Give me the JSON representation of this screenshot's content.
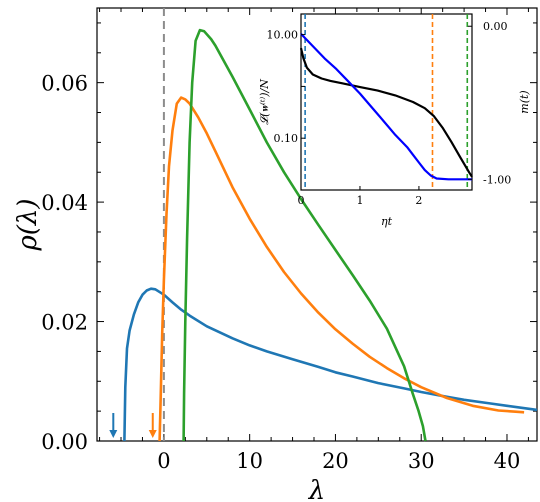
{
  "chart_data": [
    {
      "type": "line",
      "xlabel": "λ",
      "ylabel": "ρ(λ)",
      "xlim": [
        -7.8,
        43.5
      ],
      "ylim": [
        0,
        0.0725
      ],
      "x_ticks": [
        0,
        10,
        20,
        30,
        40
      ],
      "x_tick_labels": [
        "0",
        "10",
        "20",
        "30",
        "40"
      ],
      "y_ticks": [
        0,
        0.02,
        0.04,
        0.06
      ],
      "y_tick_labels": [
        "0.00",
        "0.02",
        "0.04",
        "0.06"
      ],
      "grid": false,
      "legend": "none",
      "vline": {
        "x": 0,
        "color": "#8c8c8c",
        "style": "dashed"
      },
      "series": [
        {
          "color": "#1f77b4",
          "points": [
            [
              -4.6,
              0
            ],
            [
              -4.5,
              0.009
            ],
            [
              -4.3,
              0.0155
            ],
            [
              -4.0,
              0.0185
            ],
            [
              -3.5,
              0.0212
            ],
            [
              -3.0,
              0.0232
            ],
            [
              -2.5,
              0.0245
            ],
            [
              -2.0,
              0.0252
            ],
            [
              -1.5,
              0.0255
            ],
            [
              -1.0,
              0.0254
            ],
            [
              0,
              0.0245
            ],
            [
              1,
              0.0232
            ],
            [
              2,
              0.022
            ],
            [
              3,
              0.021
            ],
            [
              5,
              0.0192
            ],
            [
              8,
              0.0172
            ],
            [
              10,
              0.016
            ],
            [
              12,
              0.015
            ],
            [
              15,
              0.0137
            ],
            [
              18,
              0.0124
            ],
            [
              20,
              0.0115
            ],
            [
              22,
              0.0108
            ],
            [
              25,
              0.0097
            ],
            [
              28,
              0.0088
            ],
            [
              30,
              0.0082
            ],
            [
              33,
              0.0074
            ],
            [
              35,
              0.0069
            ],
            [
              38,
              0.0063
            ],
            [
              40,
              0.0059
            ],
            [
              43,
              0.0053
            ],
            [
              43.5,
              0.0052
            ]
          ]
        },
        {
          "color": "#ff7f0e",
          "points": [
            [
              -0.5,
              0
            ],
            [
              -0.4,
              0.006
            ],
            [
              -0.2,
              0.018
            ],
            [
              0,
              0.027
            ],
            [
              0.3,
              0.038
            ],
            [
              0.6,
              0.046
            ],
            [
              1.0,
              0.052
            ],
            [
              1.5,
              0.0565
            ],
            [
              2.0,
              0.0575
            ],
            [
              2.5,
              0.0572
            ],
            [
              3,
              0.0565
            ],
            [
              4,
              0.0542
            ],
            [
              5,
              0.0515
            ],
            [
              6,
              0.0485
            ],
            [
              8,
              0.0425
            ],
            [
              10,
              0.0372
            ],
            [
              12,
              0.0325
            ],
            [
              14,
              0.0283
            ],
            [
              16,
              0.0247
            ],
            [
              18,
              0.0215
            ],
            [
              20,
              0.0187
            ],
            [
              22,
              0.0163
            ],
            [
              24,
              0.0141
            ],
            [
              26,
              0.0122
            ],
            [
              28,
              0.0105
            ],
            [
              30,
              0.009
            ],
            [
              33,
              0.0072
            ],
            [
              36,
              0.0059
            ],
            [
              39,
              0.0051
            ],
            [
              41,
              0.0049
            ],
            [
              42,
              0.0048
            ]
          ]
        },
        {
          "color": "#2ca02c",
          "points": [
            [
              2.3,
              0
            ],
            [
              2.35,
              0.008
            ],
            [
              2.5,
              0.02
            ],
            [
              2.7,
              0.034
            ],
            [
              3.0,
              0.05
            ],
            [
              3.3,
              0.06
            ],
            [
              3.7,
              0.067
            ],
            [
              4.2,
              0.0688
            ],
            [
              4.7,
              0.0686
            ],
            [
              5.5,
              0.0673
            ],
            [
              6,
              0.0662
            ],
            [
              8,
              0.061
            ],
            [
              10,
              0.0555
            ],
            [
              12,
              0.05
            ],
            [
              14,
              0.045
            ],
            [
              16,
              0.0405
            ],
            [
              18,
              0.0362
            ],
            [
              20,
              0.032
            ],
            [
              22,
              0.0278
            ],
            [
              24,
              0.0235
            ],
            [
              26,
              0.0188
            ],
            [
              28,
              0.0125
            ],
            [
              29,
              0.008
            ],
            [
              29.7,
              0.005
            ],
            [
              30.2,
              0.0025
            ],
            [
              30.5,
              0
            ]
          ]
        }
      ],
      "markers": [
        {
          "x": -5.9,
          "color": "#1f77b4",
          "shape": "down-arrow"
        },
        {
          "x": -1.3,
          "color": "#ff7f0e",
          "shape": "down-arrow"
        }
      ]
    },
    {
      "type": "line",
      "panel": "inset",
      "xlabel": "ηt",
      "ylabel_left": "𝓛(𝐰⁽ᵗ⁾)/N",
      "ylabel_right": "m(t)",
      "xlim": [
        0,
        2.9
      ],
      "x_ticks": [
        0,
        1,
        2
      ],
      "x_tick_labels": [
        "0",
        "1",
        "2"
      ],
      "y_left_scale": "log",
      "y_left_lim": [
        0.01,
        25
      ],
      "y_left_ticks": [
        10.0,
        0.1
      ],
      "y_left_tick_labels": [
        "10.00",
        "0.10"
      ],
      "y_right_lim": [
        -1.07,
        0.08
      ],
      "y_right_ticks": [
        0,
        -1
      ],
      "y_right_tick_labels": [
        "0.00",
        "-1.00"
      ],
      "y_right_color": "#0000ff",
      "vlines": [
        {
          "x": 0.07,
          "color": "#1f77b4",
          "style": "dashed"
        },
        {
          "x": 2.23,
          "color": "#ff7f0e",
          "style": "dashed"
        },
        {
          "x": 2.82,
          "color": "#2ca02c",
          "style": "dashed"
        }
      ],
      "series": [
        {
          "color": "#000000",
          "axis": "left",
          "points": [
            [
              0,
              5.5
            ],
            [
              0.04,
              3.5
            ],
            [
              0.1,
              2.3
            ],
            [
              0.2,
              1.7
            ],
            [
              0.35,
              1.42
            ],
            [
              0.5,
              1.28
            ],
            [
              0.7,
              1.15
            ],
            [
              1.0,
              0.97
            ],
            [
              1.3,
              0.83
            ],
            [
              1.6,
              0.67
            ],
            [
              1.9,
              0.5
            ],
            [
              2.1,
              0.38
            ],
            [
              2.25,
              0.27
            ],
            [
              2.4,
              0.16
            ],
            [
              2.55,
              0.085
            ],
            [
              2.7,
              0.043
            ],
            [
              2.85,
              0.022
            ],
            [
              2.9,
              0.018
            ]
          ]
        },
        {
          "color": "#0000ff",
          "axis": "right",
          "points": [
            [
              0,
              -0.05
            ],
            [
              0.1,
              -0.09
            ],
            [
              0.2,
              -0.13
            ],
            [
              0.4,
              -0.21
            ],
            [
              0.6,
              -0.28
            ],
            [
              0.8,
              -0.36
            ],
            [
              1.0,
              -0.44
            ],
            [
              1.2,
              -0.53
            ],
            [
              1.4,
              -0.62
            ],
            [
              1.6,
              -0.71
            ],
            [
              1.8,
              -0.79
            ],
            [
              1.9,
              -0.84
            ],
            [
              2.0,
              -0.89
            ],
            [
              2.1,
              -0.94
            ],
            [
              2.2,
              -0.975
            ],
            [
              2.3,
              -0.995
            ],
            [
              2.5,
              -1.0
            ],
            [
              2.9,
              -1.0
            ]
          ]
        }
      ]
    }
  ]
}
